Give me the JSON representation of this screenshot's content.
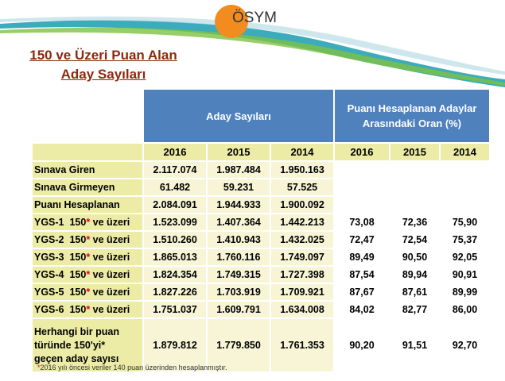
{
  "logo": {
    "text": "ÖSYM"
  },
  "title": {
    "line1": "150 ve Üzeri Puan Alan",
    "line2": "Aday Sayıları"
  },
  "table": {
    "group_headers": [
      "Aday Sayıları",
      "Puanı Hesaplanan Adaylar Arasındaki Oran (%)"
    ],
    "years": [
      "2016",
      "2015",
      "2014",
      "2016",
      "2015",
      "2014"
    ],
    "rows": [
      {
        "label": "Sınava Giren",
        "star": "",
        "label_tail": "",
        "values": [
          "2.117.074",
          "1.987.484",
          "1.950.163",
          "",
          "",
          ""
        ]
      },
      {
        "label": "Sınava Girmeyen",
        "star": "",
        "label_tail": "",
        "values": [
          "61.482",
          "59.231",
          "57.525",
          "",
          "",
          ""
        ]
      },
      {
        "label": "Puanı Hesaplanan",
        "star": "",
        "label_tail": "",
        "values": [
          "2.084.091",
          "1.944.933",
          "1.900.092",
          "",
          "",
          ""
        ]
      },
      {
        "label": "YGS-1  150",
        "star": "*",
        "label_tail": " ve üzeri",
        "values": [
          "1.523.099",
          "1.407.364",
          "1.442.213",
          "73,08",
          "72,36",
          "75,90"
        ]
      },
      {
        "label": "YGS-2  150",
        "star": "*",
        "label_tail": " ve üzeri",
        "values": [
          "1.510.260",
          "1.410.943",
          "1.432.025",
          "72,47",
          "72,54",
          "75,37"
        ]
      },
      {
        "label": "YGS-3  150",
        "star": "*",
        "label_tail": " ve üzeri",
        "values": [
          "1.865.013",
          "1.760.116",
          "1.749.097",
          "89,49",
          "90,50",
          "92,05"
        ]
      },
      {
        "label": "YGS-4  150",
        "star": "*",
        "label_tail": " ve üzeri",
        "values": [
          "1.824.354",
          "1.749.315",
          "1.727.398",
          "87,54",
          "89,94",
          "90,91"
        ]
      },
      {
        "label": "YGS-5  150",
        "star": "*",
        "label_tail": " ve üzeri",
        "values": [
          "1.827.226",
          "1.703.919",
          "1.709.921",
          "87,67",
          "87,61",
          "89,99"
        ]
      },
      {
        "label": "YGS-6  150",
        "star": "*",
        "label_tail": " ve üzeri",
        "values": [
          "1.751.037",
          "1.609.791",
          "1.634.008",
          "84,02",
          "82,77",
          "86,00"
        ]
      }
    ],
    "last_row": {
      "label_lines": [
        "Herhangi bir puan",
        "türünde 150'yi*",
        "geçen aday sayısı"
      ],
      "values": [
        "1.879.812",
        "1.779.850",
        "1.761.353",
        "90,20",
        "91,51",
        "92,70"
      ]
    }
  },
  "footnote": {
    "star": "*",
    "text": "2016 yılı öncesi veriler 140 puan üzerinden hesaplanmıştır."
  },
  "colors": {
    "header_blue": "#4f81bd",
    "label_khaki": "#ececa6",
    "value_cream": "#f7f5d6",
    "title_brown": "#8b2a0e",
    "logo_orange": "#f28c1f"
  }
}
